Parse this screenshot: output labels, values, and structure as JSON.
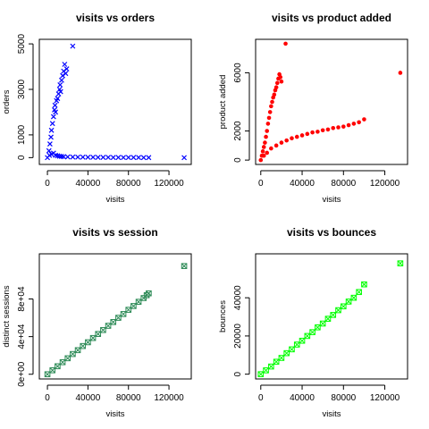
{
  "chart_data": [
    {
      "type": "scatter",
      "title": "visits vs orders",
      "xlabel": "visits",
      "ylabel": "orders",
      "xlim": [
        -8000,
        142000
      ],
      "ylim": [
        -300,
        5200
      ],
      "xticks": [
        0,
        40000,
        80000,
        120000
      ],
      "xtick_labels": [
        "0",
        "40000",
        "80000",
        "120000"
      ],
      "yticks": [
        0,
        1000,
        3000,
        5000
      ],
      "ytick_labels": [
        "0",
        "1000",
        "3000",
        "5000"
      ],
      "marker": "x",
      "color": "#0000ff",
      "points": [
        [
          0,
          0
        ],
        [
          1500,
          300
        ],
        [
          2500,
          600
        ],
        [
          3500,
          900
        ],
        [
          4000,
          1200
        ],
        [
          5000,
          1500
        ],
        [
          6000,
          1800
        ],
        [
          7000,
          2100
        ],
        [
          7500,
          2300
        ],
        [
          8000,
          2000
        ],
        [
          9000,
          2500
        ],
        [
          10000,
          2600
        ],
        [
          11000,
          2800
        ],
        [
          12000,
          3000
        ],
        [
          12500,
          3200
        ],
        [
          13000,
          2900
        ],
        [
          14000,
          3400
        ],
        [
          15000,
          3600
        ],
        [
          16000,
          3800
        ],
        [
          17000,
          4100
        ],
        [
          18000,
          3700
        ],
        [
          19000,
          3900
        ],
        [
          25000,
          4900
        ],
        [
          2000,
          100
        ],
        [
          4000,
          150
        ],
        [
          6000,
          200
        ],
        [
          8000,
          100
        ],
        [
          10000,
          80
        ],
        [
          12000,
          60
        ],
        [
          14000,
          50
        ],
        [
          16000,
          40
        ],
        [
          20000,
          30
        ],
        [
          25000,
          25
        ],
        [
          30000,
          20
        ],
        [
          35000,
          20
        ],
        [
          40000,
          15
        ],
        [
          45000,
          15
        ],
        [
          50000,
          10
        ],
        [
          55000,
          10
        ],
        [
          60000,
          10
        ],
        [
          65000,
          8
        ],
        [
          70000,
          8
        ],
        [
          75000,
          5
        ],
        [
          80000,
          5
        ],
        [
          85000,
          5
        ],
        [
          90000,
          5
        ],
        [
          95000,
          3
        ],
        [
          100000,
          3
        ],
        [
          135000,
          0
        ]
      ]
    },
    {
      "type": "scatter",
      "title": "visits vs product added",
      "xlabel": "visits",
      "ylabel": "product added",
      "xlim": [
        -5000,
        142000
      ],
      "ylim": [
        -300,
        8300
      ],
      "xticks": [
        0,
        40000,
        80000,
        120000
      ],
      "xtick_labels": [
        "0",
        "40000",
        "80000",
        "120000"
      ],
      "yticks": [
        0,
        2000,
        6000
      ],
      "ytick_labels": [
        "0",
        "2000",
        "6000"
      ],
      "marker": "circle",
      "color": "#ff0000",
      "points": [
        [
          0,
          0
        ],
        [
          1000,
          300
        ],
        [
          2000,
          600
        ],
        [
          3000,
          900
        ],
        [
          4000,
          1200
        ],
        [
          5000,
          1600
        ],
        [
          6000,
          2000
        ],
        [
          7000,
          2500
        ],
        [
          8000,
          2900
        ],
        [
          9000,
          3300
        ],
        [
          10000,
          3700
        ],
        [
          11000,
          4000
        ],
        [
          12000,
          4300
        ],
        [
          13000,
          4500
        ],
        [
          14000,
          4800
        ],
        [
          15000,
          5000
        ],
        [
          16000,
          5300
        ],
        [
          17000,
          5600
        ],
        [
          18000,
          5900
        ],
        [
          19000,
          5700
        ],
        [
          20000,
          5400
        ],
        [
          24000,
          8000
        ],
        [
          3000,
          300
        ],
        [
          6000,
          500
        ],
        [
          10000,
          800
        ],
        [
          15000,
          1000
        ],
        [
          20000,
          1200
        ],
        [
          25000,
          1350
        ],
        [
          30000,
          1500
        ],
        [
          35000,
          1600
        ],
        [
          40000,
          1700
        ],
        [
          45000,
          1800
        ],
        [
          50000,
          1900
        ],
        [
          55000,
          1950
        ],
        [
          60000,
          2050
        ],
        [
          65000,
          2100
        ],
        [
          70000,
          2200
        ],
        [
          75000,
          2250
        ],
        [
          80000,
          2300
        ],
        [
          85000,
          2400
        ],
        [
          90000,
          2500
        ],
        [
          95000,
          2600
        ],
        [
          100000,
          2800
        ],
        [
          135000,
          6000
        ]
      ]
    },
    {
      "type": "scatter",
      "title": "visits vs session",
      "xlabel": "visits",
      "ylabel": "distinct sessions",
      "xlim": [
        -8000,
        142000
      ],
      "ylim": [
        -5000,
        128000
      ],
      "xticks": [
        0,
        40000,
        80000,
        120000
      ],
      "xtick_labels": [
        "0",
        "40000",
        "80000",
        "120000"
      ],
      "yticks": [
        0,
        40000,
        80000
      ],
      "ytick_labels": [
        "0e+00",
        "4e+04",
        "8e+04"
      ],
      "marker": "square-x",
      "color": "#2e8b57",
      "points": [
        [
          0,
          0
        ],
        [
          5000,
          4200
        ],
        [
          10000,
          8500
        ],
        [
          15000,
          12800
        ],
        [
          20000,
          17000
        ],
        [
          25000,
          21500
        ],
        [
          30000,
          25600
        ],
        [
          35000,
          30000
        ],
        [
          40000,
          34000
        ],
        [
          45000,
          38500
        ],
        [
          50000,
          42800
        ],
        [
          55000,
          47000
        ],
        [
          60000,
          51500
        ],
        [
          65000,
          55500
        ],
        [
          70000,
          60000
        ],
        [
          75000,
          64000
        ],
        [
          80000,
          68500
        ],
        [
          85000,
          72500
        ],
        [
          90000,
          77000
        ],
        [
          95000,
          81000
        ],
        [
          98000,
          84000
        ],
        [
          100000,
          86000
        ],
        [
          135000,
          115000
        ]
      ]
    },
    {
      "type": "scatter",
      "title": "visits vs bounces",
      "xlabel": "visits",
      "ylabel": "bounces",
      "xlim": [
        -5000,
        142000
      ],
      "ylim": [
        -2500,
        63000
      ],
      "xticks": [
        0,
        40000,
        80000,
        120000
      ],
      "xtick_labels": [
        "0",
        "40000",
        "80000",
        "120000"
      ],
      "yticks": [
        0,
        20000,
        40000
      ],
      "ytick_labels": [
        "0",
        "20000",
        "40000"
      ],
      "marker": "square-x",
      "color": "#00ff00",
      "points": [
        [
          0,
          0
        ],
        [
          5000,
          2000
        ],
        [
          10000,
          4000
        ],
        [
          15000,
          6500
        ],
        [
          20000,
          8500
        ],
        [
          25000,
          11000
        ],
        [
          30000,
          13000
        ],
        [
          35000,
          15500
        ],
        [
          40000,
          17500
        ],
        [
          45000,
          20000
        ],
        [
          50000,
          22000
        ],
        [
          55000,
          24500
        ],
        [
          60000,
          26500
        ],
        [
          65000,
          29000
        ],
        [
          70000,
          31000
        ],
        [
          75000,
          33500
        ],
        [
          80000,
          35500
        ],
        [
          85000,
          38000
        ],
        [
          90000,
          40000
        ],
        [
          95000,
          43000
        ],
        [
          100000,
          47000
        ],
        [
          135000,
          58000
        ]
      ]
    }
  ]
}
